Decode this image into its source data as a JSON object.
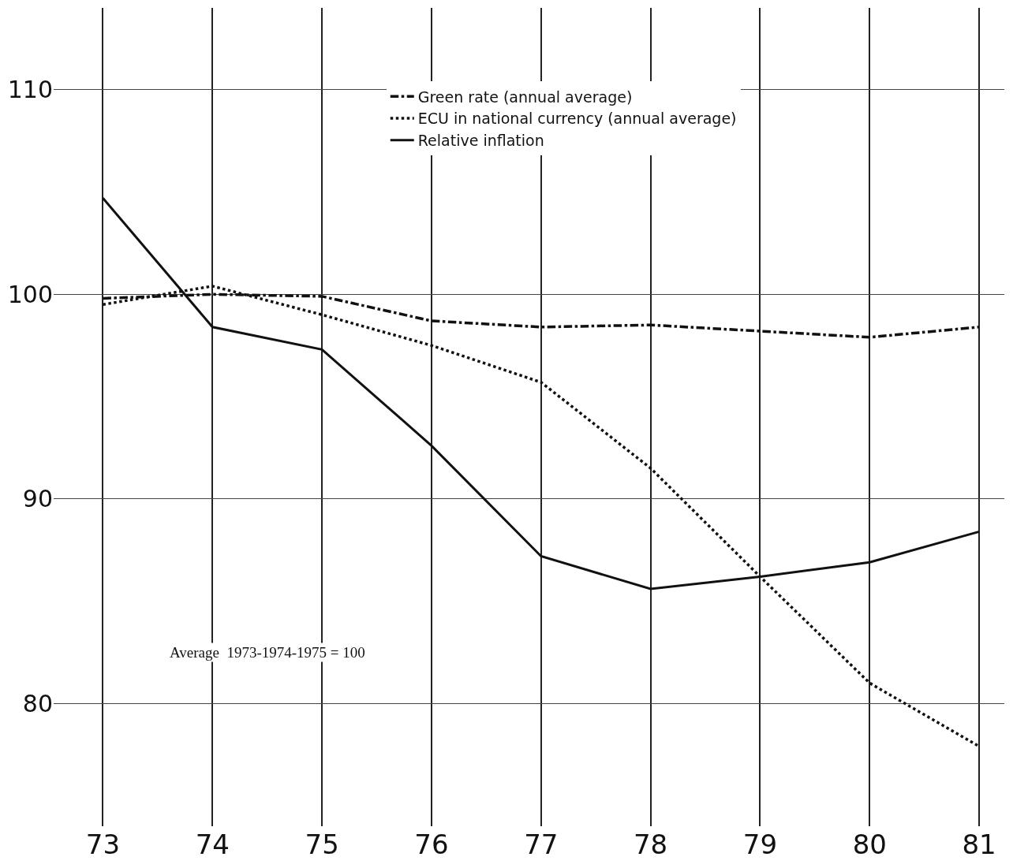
{
  "chart_data": {
    "type": "line",
    "x": [
      1973,
      1974,
      1975,
      1976,
      1977,
      1978,
      1979,
      1980,
      1981
    ],
    "series": [
      {
        "name": "Green rate (annual average)",
        "color": "#111111",
        "line_style": "dashdot",
        "values": [
          99.8,
          100.0,
          99.9,
          98.7,
          98.4,
          98.5,
          98.2,
          97.9,
          98.4
        ]
      },
      {
        "name": "ECU in national currency (annual average)",
        "color": "#111111",
        "line_style": "dotted",
        "values": [
          99.5,
          100.4,
          99.0,
          97.5,
          95.7,
          91.5,
          86.2,
          81.0,
          77.9
        ]
      },
      {
        "name": "Relative inflation",
        "color": "#111111",
        "line_style": "solid",
        "values": [
          104.7,
          98.4,
          97.3,
          92.6,
          87.2,
          85.6,
          86.2,
          86.9,
          88.4
        ]
      }
    ],
    "xlim": [
      1972.55,
      1981.23
    ],
    "xticks": [
      {
        "value": 1973,
        "label": "73"
      },
      {
        "value": 1974,
        "label": "74"
      },
      {
        "value": 1975,
        "label": "75"
      },
      {
        "value": 1976,
        "label": "76"
      },
      {
        "value": 1977,
        "label": "77"
      },
      {
        "value": 1978,
        "label": "78"
      },
      {
        "value": 1979,
        "label": "79"
      },
      {
        "value": 1980,
        "label": "80"
      },
      {
        "value": 1981,
        "label": "81"
      }
    ],
    "ylim": [
      74,
      114
    ],
    "yticks": [
      80,
      90,
      100,
      110
    ],
    "grid": true,
    "legend": "top",
    "marker": "none",
    "annotations": [
      "Average  1973-1974-1975 = 100"
    ]
  }
}
